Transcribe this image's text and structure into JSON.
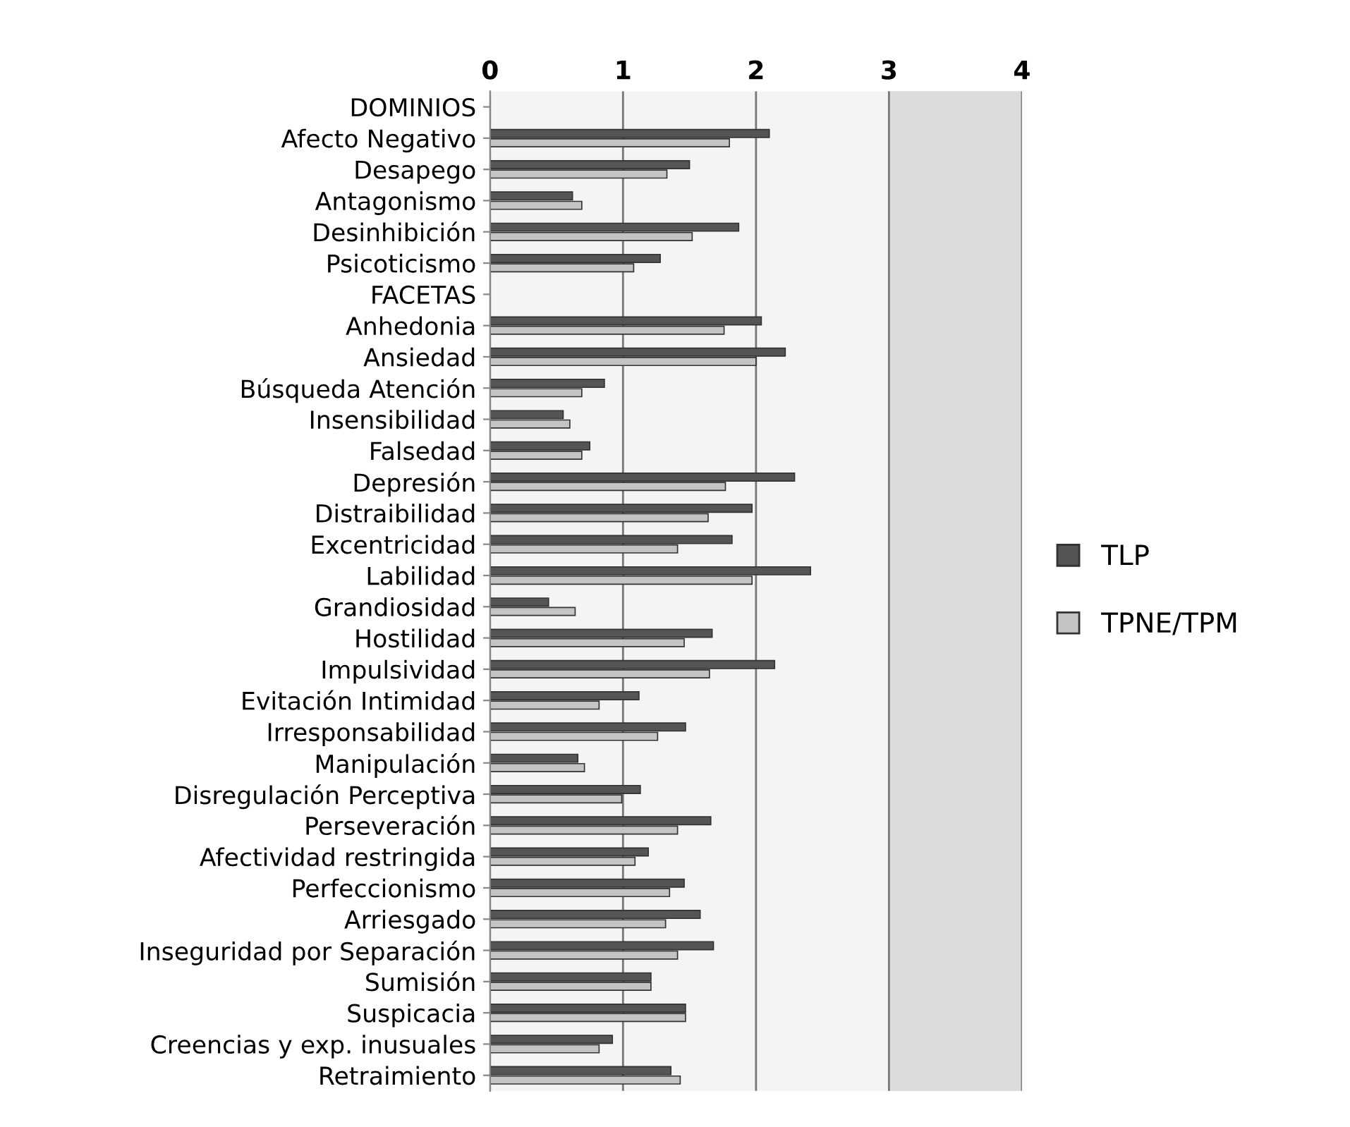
{
  "chart_data": {
    "type": "bar",
    "orientation": "horizontal",
    "categories": [
      "DOMINIOS",
      "Afecto Negativo",
      "Desapego",
      "Antagonismo",
      "Desinhibición",
      "Psicoticismo",
      "FACETAS",
      "Anhedonia",
      "Ansiedad",
      "Búsqueda Atención",
      "Insensibilidad",
      "Falsedad",
      "Depresión",
      "Distraibilidad",
      "Excentricidad",
      "Labilidad",
      "Grandiosidad",
      "Hostilidad",
      "Impulsividad",
      "Evitación Intimidad",
      "Irresponsabilidad",
      "Manipulación",
      "Disregulación Perceptiva",
      "Perseveración",
      "Afectividad restringida",
      "Perfeccionismo",
      "Arriesgado",
      "Inseguridad por Separación",
      "Sumisión",
      "Suspicacia",
      "Creencias y exp. inusuales",
      "Retraimiento"
    ],
    "series": [
      {
        "name": "TLP",
        "color": "#555555",
        "values": [
          null,
          2.1,
          1.5,
          0.62,
          1.87,
          1.28,
          null,
          2.04,
          2.22,
          0.86,
          0.55,
          0.75,
          2.29,
          1.97,
          1.82,
          2.41,
          0.44,
          1.67,
          2.14,
          1.12,
          1.47,
          0.66,
          1.13,
          1.66,
          1.19,
          1.46,
          1.58,
          1.68,
          1.21,
          1.47,
          0.92,
          1.36
        ]
      },
      {
        "name": "TPNE/TPM",
        "color": "#c4c4c4",
        "values": [
          null,
          1.8,
          1.33,
          0.69,
          1.52,
          1.08,
          null,
          1.76,
          2.0,
          0.69,
          0.6,
          0.69,
          1.77,
          1.64,
          1.41,
          1.97,
          0.64,
          1.46,
          1.65,
          0.82,
          1.26,
          0.71,
          0.99,
          1.41,
          1.09,
          1.35,
          1.32,
          1.41,
          1.21,
          1.47,
          0.82,
          1.43
        ]
      }
    ],
    "xlim": [
      0,
      4
    ],
    "xticks": [
      0,
      1,
      2,
      3,
      4
    ],
    "grid": "x",
    "legend": "right"
  }
}
